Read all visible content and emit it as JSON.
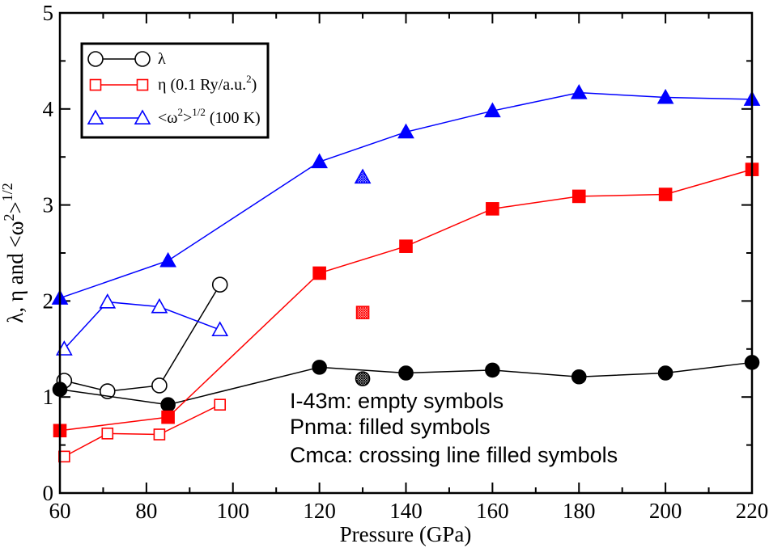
{
  "chart_data": {
    "type": "line",
    "xlabel": "Pressure (GPa)",
    "ylabel": {
      "main": "λ, η  and <ω",
      "sup1": "2",
      "mid": ">",
      "sup2": "1/2"
    },
    "xlim": [
      60,
      220
    ],
    "ylim": [
      0,
      5
    ],
    "xticks": [
      60,
      80,
      100,
      120,
      140,
      160,
      180,
      200,
      220
    ],
    "yticks": [
      0,
      1,
      2,
      3,
      4,
      5
    ],
    "xtick_labels": [
      "60",
      "80",
      "100",
      "120",
      "140",
      "160",
      "180",
      "200",
      "220"
    ],
    "ytick_labels": [
      "0",
      "1",
      "2",
      "3",
      "4",
      "5"
    ],
    "colors": {
      "lambda": "#000000",
      "eta": "#ff0000",
      "omega": "#0000ff"
    },
    "legend": {
      "placement": "top-left",
      "entries": [
        {
          "main": "λ",
          "sup": "",
          "rest": ""
        },
        {
          "main": "η (0.1 Ry/a.u.",
          "sup": "2",
          "rest": ")"
        },
        {
          "main": "<ω",
          "sup": "2",
          "rest": ">",
          "sup2": "1/2",
          "rest2": " (100 K)"
        }
      ]
    },
    "series": [
      {
        "quantity": "lambda",
        "phase": "I-43m",
        "marker": "circle",
        "style": "empty",
        "x": [
          61,
          71,
          83,
          97
        ],
        "y": [
          1.17,
          1.06,
          1.12,
          2.17
        ]
      },
      {
        "quantity": "lambda",
        "phase": "Pnma",
        "marker": "circle",
        "style": "filled",
        "x": [
          60,
          85,
          120,
          140,
          160,
          180,
          200,
          220
        ],
        "y": [
          1.08,
          0.92,
          1.31,
          1.25,
          1.28,
          1.21,
          1.25,
          1.36
        ]
      },
      {
        "quantity": "lambda",
        "phase": "Cmca",
        "marker": "circle",
        "style": "hatched",
        "x": [
          130
        ],
        "y": [
          1.19
        ]
      },
      {
        "quantity": "eta",
        "phase": "I-43m",
        "marker": "square",
        "style": "empty",
        "x": [
          61,
          71,
          83,
          97
        ],
        "y": [
          0.38,
          0.62,
          0.61,
          0.92
        ]
      },
      {
        "quantity": "eta",
        "phase": "Pnma",
        "marker": "square",
        "style": "filled",
        "x": [
          60,
          85,
          120,
          140,
          160,
          180,
          200,
          220
        ],
        "y": [
          0.65,
          0.79,
          2.29,
          2.57,
          2.96,
          3.09,
          3.11,
          3.37
        ]
      },
      {
        "quantity": "eta",
        "phase": "Cmca",
        "marker": "square",
        "style": "hatched",
        "x": [
          130
        ],
        "y": [
          1.88
        ]
      },
      {
        "quantity": "omega",
        "phase": "I-43m",
        "marker": "triangle",
        "style": "empty",
        "x": [
          61,
          71,
          83,
          97
        ],
        "y": [
          1.5,
          1.99,
          1.94,
          1.7
        ]
      },
      {
        "quantity": "omega",
        "phase": "Pnma",
        "marker": "triangle",
        "style": "filled",
        "x": [
          60,
          85,
          120,
          140,
          160,
          180,
          200,
          220
        ],
        "y": [
          2.03,
          2.42,
          3.45,
          3.76,
          3.98,
          4.17,
          4.12,
          4.1
        ]
      },
      {
        "quantity": "omega",
        "phase": "Cmca",
        "marker": "triangle",
        "style": "hatched",
        "x": [
          130
        ],
        "y": [
          3.29
        ]
      }
    ],
    "annotations": [
      "I-43m: empty symbols",
      "Pnma: filled symbols",
      "Cmca: crossing line filled symbols"
    ]
  }
}
